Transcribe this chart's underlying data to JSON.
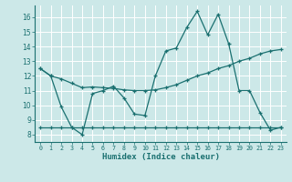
{
  "xlabel": "Humidex (Indice chaleur)",
  "bg_color": "#cce8e8",
  "grid_color": "#ffffff",
  "line_color": "#1a7070",
  "xlim": [
    -0.5,
    23.5
  ],
  "ylim": [
    7.5,
    16.8
  ],
  "yticks": [
    8,
    9,
    10,
    11,
    12,
    13,
    14,
    15,
    16
  ],
  "xticks": [
    0,
    1,
    2,
    3,
    4,
    5,
    6,
    7,
    8,
    9,
    10,
    11,
    12,
    13,
    14,
    15,
    16,
    17,
    18,
    19,
    20,
    21,
    22,
    23
  ],
  "line1_x": [
    0,
    1,
    2,
    3,
    4,
    5,
    6,
    7,
    8,
    9,
    10,
    11,
    12,
    13,
    14,
    15,
    16,
    17,
    18,
    19,
    20,
    21,
    22,
    23
  ],
  "line1_y": [
    12.5,
    12.0,
    11.8,
    11.5,
    11.2,
    11.25,
    11.2,
    11.15,
    11.05,
    11.0,
    11.0,
    11.05,
    11.2,
    11.4,
    11.7,
    12.0,
    12.2,
    12.5,
    12.7,
    13.0,
    13.2,
    13.5,
    13.7,
    13.8
  ],
  "line2_x": [
    0,
    1,
    2,
    3,
    4,
    5,
    6,
    7,
    8,
    9,
    10,
    11,
    12,
    13,
    14,
    15,
    16,
    17,
    18,
    19,
    20,
    21,
    22,
    23
  ],
  "line2_y": [
    8.5,
    8.5,
    8.5,
    8.5,
    8.5,
    8.5,
    8.5,
    8.5,
    8.5,
    8.5,
    8.5,
    8.5,
    8.5,
    8.5,
    8.5,
    8.5,
    8.5,
    8.5,
    8.5,
    8.5,
    8.5,
    8.5,
    8.5,
    8.5
  ],
  "line3_x": [
    0,
    1,
    2,
    3,
    4,
    5,
    6,
    7,
    8,
    9,
    10,
    11,
    12,
    13,
    14,
    15,
    16,
    17,
    18,
    19,
    20,
    21,
    22,
    23
  ],
  "line3_y": [
    12.5,
    12.0,
    9.9,
    8.5,
    8.0,
    10.8,
    11.0,
    11.3,
    10.5,
    9.4,
    9.3,
    12.0,
    13.7,
    13.9,
    15.3,
    16.4,
    14.8,
    16.2,
    14.2,
    11.0,
    11.0,
    9.5,
    8.3,
    8.5
  ]
}
